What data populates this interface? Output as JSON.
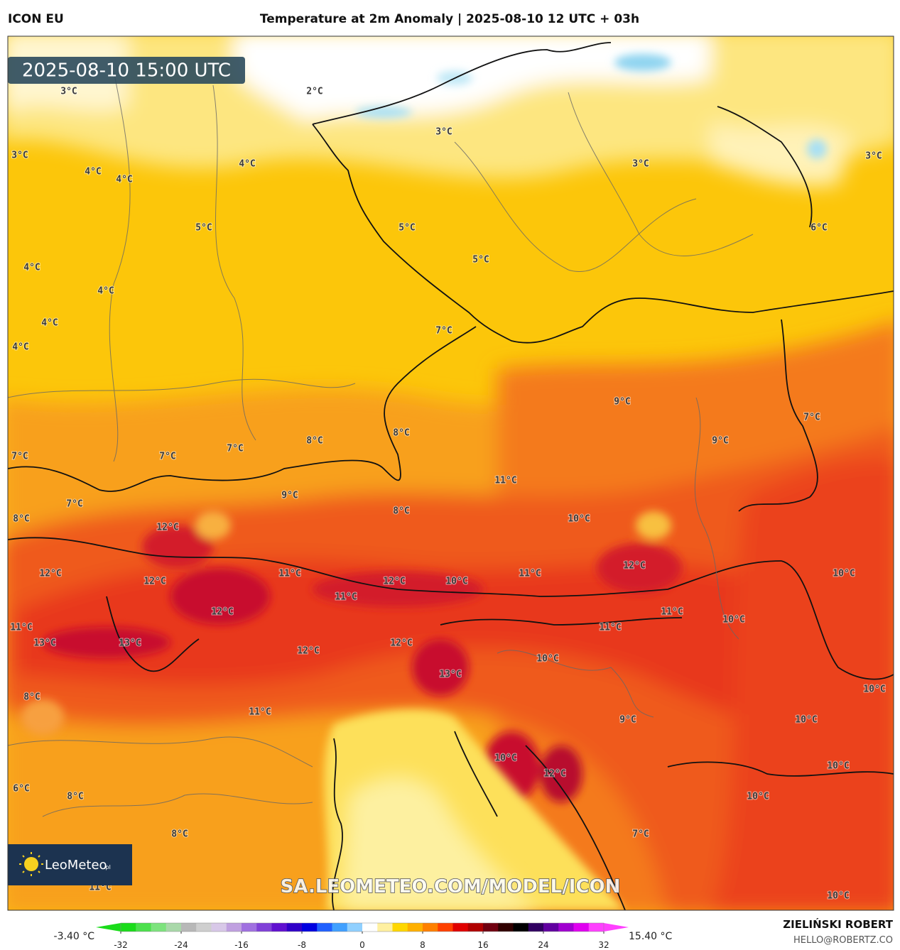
{
  "header": {
    "model": "ICON EU",
    "title": "Temperature at 2m Anomaly | 2025-08-10 12 UTC + 03h"
  },
  "map": {
    "valid_time": "2025-08-10 15:00 UTC",
    "contour_labels": [
      "3°C",
      "2°C",
      "3°C",
      "3°C",
      "3°C",
      "3°C",
      "4°C",
      "4°C",
      "4°C",
      "5°C",
      "5°C",
      "6°C",
      "5°C",
      "4°C",
      "4°C",
      "4°C",
      "4°C",
      "7°C",
      "9°C",
      "7°C",
      "8°C",
      "7°C",
      "7°C",
      "7°C",
      "8°C",
      "9°C",
      "11°C",
      "7°C",
      "9°C",
      "8°C",
      "8°C",
      "12°C",
      "10°C",
      "12°C",
      "12°C",
      "11°C",
      "12°C",
      "12°C",
      "10°C",
      "11°C",
      "10°C",
      "11°C",
      "12°C",
      "11°C",
      "10°C",
      "11°C",
      "11°C",
      "13°C",
      "13°C",
      "12°C",
      "12°C",
      "10°C",
      "13°C",
      "10°C",
      "8°C",
      "11°C",
      "9°C",
      "10°C",
      "10°C",
      "10°C",
      "12°C",
      "6°C",
      "8°C",
      "10°C",
      "8°C",
      "7°C",
      "11°C",
      "10°C"
    ],
    "watermark": "SA.LEOMETEO.COM/MODEL/ICON",
    "logo": "LeoMeteo",
    "logo_suffix": ".pl"
  },
  "colorbar": {
    "min_label": "-3.40 °C",
    "max_label": "15.40 °C",
    "range": [
      -32,
      32
    ],
    "ticks": [
      -32,
      -24,
      -16,
      -8,
      0,
      8,
      16,
      24,
      32
    ],
    "step": 2,
    "colors": [
      "#1adc1a",
      "#4ce04c",
      "#7de37d",
      "#a9d8a9",
      "#b8b8b8",
      "#cfcfcf",
      "#d8c8e8",
      "#c0a0e0",
      "#a070e0",
      "#8040d8",
      "#6010d0",
      "#3000c8",
      "#0000e0",
      "#2060ff",
      "#40a0ff",
      "#90d0ff",
      "#ffffff",
      "#fff0a0",
      "#ffd700",
      "#ffb000",
      "#ff8000",
      "#ff4000",
      "#e00000",
      "#b00000",
      "#700010",
      "#300000",
      "#000000",
      "#300060",
      "#6000a0",
      "#a000d0",
      "#e000f0",
      "#ff40ff"
    ]
  },
  "footer": {
    "author": "ZIELIŃSKI ROBERT",
    "contact": "HELLO@ROBERTZ.CO"
  }
}
